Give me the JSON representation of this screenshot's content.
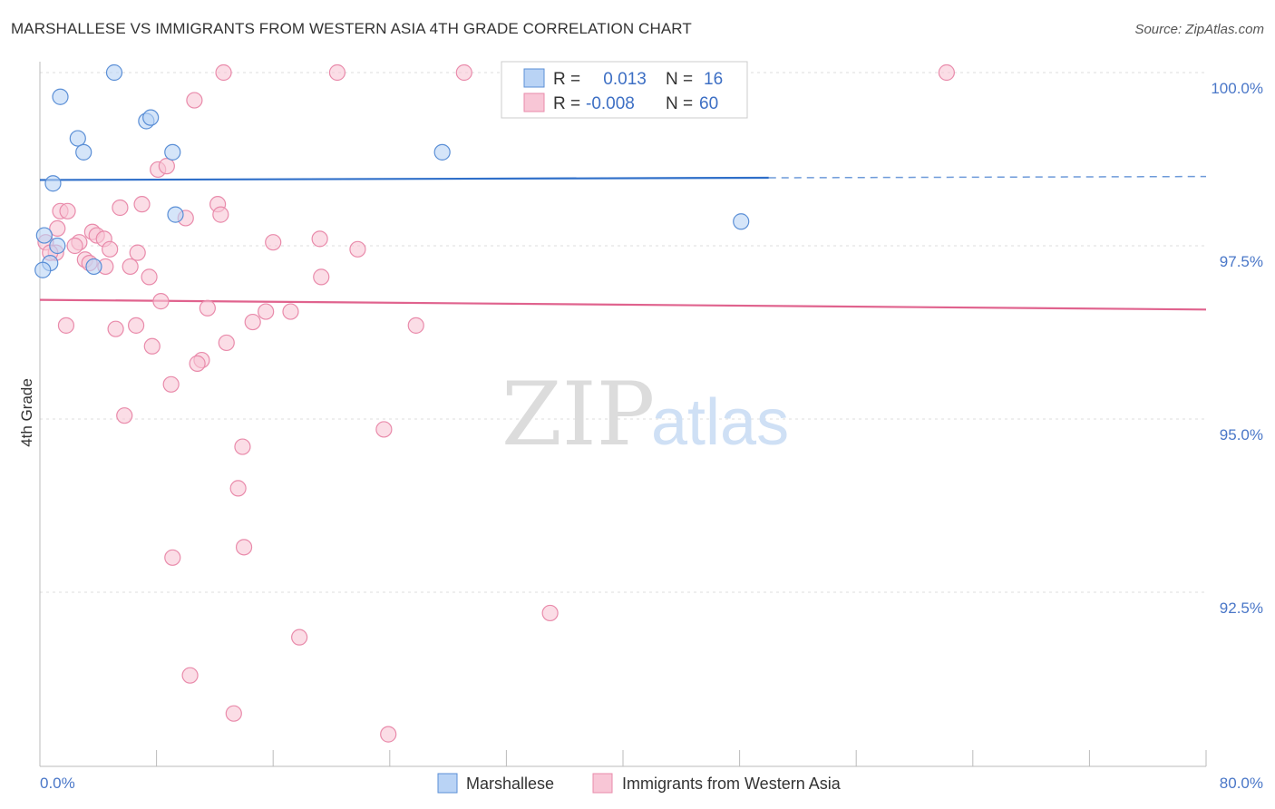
{
  "title": "MARSHALLESE VS IMMIGRANTS FROM WESTERN ASIA 4TH GRADE CORRELATION CHART",
  "source": "Source: ZipAtlas.com",
  "watermark": {
    "part1": "ZIP",
    "part2": "atlas"
  },
  "colors": {
    "marshallese_fill": "#b9d3f5",
    "marshallese_stroke": "#5b8fd6",
    "marshallese_line": "#2f6fc9",
    "western_asia_fill": "#f8c6d6",
    "western_asia_stroke": "#e98bab",
    "western_asia_line": "#e0638e",
    "tick_label": "#4a77c8",
    "grid": "#dddddd"
  },
  "legend": {
    "rows": [
      {
        "r_label": "R = ",
        "r_value": " 0.013",
        "n_label": "N = ",
        "n_value": "16"
      },
      {
        "r_label": "R = ",
        "r_value": "-0.008",
        "n_label": "N = ",
        "n_value": "60"
      }
    ]
  },
  "bottom_legend": {
    "items": [
      {
        "label": "Marshallese"
      },
      {
        "label": "Immigrants from Western Asia"
      }
    ]
  },
  "chart_data": {
    "type": "scatter",
    "title": "MARSHALLESE VS IMMIGRANTS FROM WESTERN ASIA 4TH GRADE CORRELATION CHART",
    "xlabel": "",
    "ylabel": "4th Grade",
    "xlim": [
      0,
      80
    ],
    "ylim": [
      90.0,
      100.5
    ],
    "x_tick_labels": [
      "0.0%",
      "80.0%"
    ],
    "y_ticks": [
      92.5,
      95.0,
      97.5,
      100.0
    ],
    "y_tick_labels": [
      "92.5%",
      "95.0%",
      "97.5%",
      "100.0%"
    ],
    "grid": "horizontal dashed",
    "legend_position": "top-center",
    "series": [
      {
        "name": "Marshallese",
        "r": 0.013,
        "n": 16,
        "points": [
          [
            5.1,
            100.0
          ],
          [
            1.4,
            99.65
          ],
          [
            2.6,
            99.05
          ],
          [
            3.0,
            98.85
          ],
          [
            7.3,
            99.3
          ],
          [
            7.6,
            99.35
          ],
          [
            9.1,
            98.85
          ],
          [
            0.9,
            98.4
          ],
          [
            9.3,
            97.95
          ],
          [
            0.3,
            97.65
          ],
          [
            1.2,
            97.5
          ],
          [
            0.7,
            97.25
          ],
          [
            3.7,
            97.2
          ],
          [
            0.2,
            97.15
          ],
          [
            27.6,
            98.85
          ],
          [
            48.1,
            97.85
          ]
        ],
        "trend": {
          "x_start": 0,
          "x_end": 80,
          "y_start": 98.45,
          "y_end": 98.5,
          "solid_until_x": 50
        }
      },
      {
        "name": "Immigrants from Western Asia",
        "r": -0.008,
        "n": 60,
        "points": [
          [
            12.6,
            100.0
          ],
          [
            20.4,
            100.0
          ],
          [
            29.1,
            100.0
          ],
          [
            62.2,
            100.0
          ],
          [
            42.9,
            100.0
          ],
          [
            10.6,
            99.6
          ],
          [
            8.1,
            98.6
          ],
          [
            8.7,
            98.65
          ],
          [
            5.5,
            98.05
          ],
          [
            7.0,
            98.1
          ],
          [
            12.2,
            98.1
          ],
          [
            1.4,
            98.0
          ],
          [
            1.9,
            98.0
          ],
          [
            12.4,
            97.95
          ],
          [
            10.0,
            97.9
          ],
          [
            1.2,
            97.75
          ],
          [
            3.6,
            97.7
          ],
          [
            3.9,
            97.65
          ],
          [
            4.4,
            97.6
          ],
          [
            2.7,
            97.55
          ],
          [
            2.4,
            97.5
          ],
          [
            0.4,
            97.55
          ],
          [
            1.1,
            97.4
          ],
          [
            4.8,
            97.45
          ],
          [
            6.7,
            97.4
          ],
          [
            0.7,
            97.4
          ],
          [
            3.1,
            97.3
          ],
          [
            3.4,
            97.25
          ],
          [
            4.5,
            97.2
          ],
          [
            6.2,
            97.2
          ],
          [
            16.0,
            97.55
          ],
          [
            19.2,
            97.6
          ],
          [
            21.8,
            97.45
          ],
          [
            7.5,
            97.05
          ],
          [
            19.3,
            97.05
          ],
          [
            8.3,
            96.7
          ],
          [
            11.5,
            96.6
          ],
          [
            15.5,
            96.55
          ],
          [
            17.2,
            96.55
          ],
          [
            14.6,
            96.4
          ],
          [
            1.8,
            96.35
          ],
          [
            5.2,
            96.3
          ],
          [
            6.6,
            96.35
          ],
          [
            25.8,
            96.35
          ],
          [
            12.8,
            96.1
          ],
          [
            7.7,
            96.05
          ],
          [
            11.1,
            95.85
          ],
          [
            10.8,
            95.8
          ],
          [
            9.0,
            95.5
          ],
          [
            5.8,
            95.05
          ],
          [
            23.6,
            94.85
          ],
          [
            13.9,
            94.6
          ],
          [
            13.6,
            94.0
          ],
          [
            14.0,
            93.15
          ],
          [
            9.1,
            93.0
          ],
          [
            35.0,
            92.2
          ],
          [
            17.8,
            91.85
          ],
          [
            10.3,
            91.3
          ],
          [
            13.3,
            90.75
          ],
          [
            23.9,
            90.45
          ]
        ],
        "trend": {
          "x_start": 0,
          "x_end": 80,
          "y_start": 96.72,
          "y_end": 96.58
        }
      }
    ]
  }
}
